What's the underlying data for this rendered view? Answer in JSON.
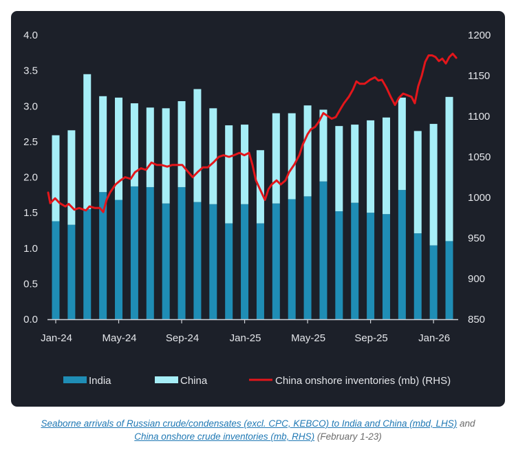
{
  "colors": {
    "card_background": "#1c2029",
    "india": "#1f8db5",
    "china": "#a6eef7",
    "inventories": "#e3161b",
    "axis": "#d0d4da"
  },
  "chart_data": {
    "type": "bar",
    "stacked": true,
    "bar_x_units": "month index, 0 = first labeled month (Jan-24), one bar per month",
    "x_ticks": [
      {
        "index": 0,
        "label": "Jan-24"
      },
      {
        "index": 4,
        "label": "May-24"
      },
      {
        "index": 8,
        "label": "Sep-24"
      },
      {
        "index": 12,
        "label": "Jan-25"
      },
      {
        "index": 16,
        "label": "May-25"
      },
      {
        "index": 20,
        "label": "Sep-25"
      },
      {
        "index": 24,
        "label": "Jan-26"
      }
    ],
    "y_left": {
      "ylim": [
        0,
        4
      ],
      "ticks": [
        "0.0",
        "0.5",
        "1.0",
        "1.5",
        "2.0",
        "2.5",
        "3.0",
        "3.5",
        "4.0"
      ]
    },
    "y_right": {
      "ylim": [
        850,
        1200
      ],
      "ticks": [
        "850",
        "900",
        "950",
        "1000",
        "1050",
        "1100",
        "1150",
        "1200"
      ]
    },
    "series": [
      {
        "name": "India",
        "axis": "left",
        "kind": "bar",
        "values": [
          1.38,
          1.33,
          1.55,
          1.79,
          1.68,
          1.87,
          1.86,
          1.63,
          1.86,
          1.65,
          1.62,
          1.35,
          1.62,
          1.35,
          1.63,
          1.69,
          1.73,
          1.94,
          1.52,
          1.64,
          1.5,
          1.48,
          1.82,
          1.21,
          1.04,
          1.1
        ]
      },
      {
        "name": "China",
        "axis": "left",
        "kind": "bar",
        "values": [
          1.21,
          1.33,
          1.9,
          1.35,
          1.44,
          1.17,
          1.12,
          1.34,
          1.21,
          1.59,
          1.35,
          1.38,
          1.12,
          1.03,
          1.27,
          1.21,
          1.28,
          1.01,
          1.2,
          1.1,
          1.3,
          1.36,
          1.3,
          1.44,
          1.71,
          2.03
        ]
      },
      {
        "name": "China onshore inventories (mb) (RHS)",
        "axis": "right",
        "kind": "line",
        "points": [
          [
            -0.48,
            1006
          ],
          [
            -0.35,
            993
          ],
          [
            -0.04,
            999
          ],
          [
            0.26,
            993
          ],
          [
            0.61,
            989
          ],
          [
            0.83,
            992
          ],
          [
            1.18,
            985
          ],
          [
            1.49,
            987
          ],
          [
            1.92,
            984
          ],
          [
            2.14,
            989
          ],
          [
            2.49,
            987
          ],
          [
            2.8,
            987
          ],
          [
            3.02,
            982
          ],
          [
            3.23,
            997
          ],
          [
            3.45,
            1006
          ],
          [
            3.8,
            1016
          ],
          [
            4.11,
            1021
          ],
          [
            4.41,
            1025
          ],
          [
            4.76,
            1023
          ],
          [
            5.03,
            1031
          ],
          [
            5.42,
            1036
          ],
          [
            5.73,
            1034
          ],
          [
            6.08,
            1043
          ],
          [
            6.42,
            1040
          ],
          [
            6.73,
            1040
          ],
          [
            7.08,
            1038
          ],
          [
            7.39,
            1040
          ],
          [
            7.74,
            1040
          ],
          [
            8.04,
            1040
          ],
          [
            8.35,
            1033
          ],
          [
            8.7,
            1025
          ],
          [
            9.0,
            1031
          ],
          [
            9.35,
            1037
          ],
          [
            9.66,
            1037
          ],
          [
            10.01,
            1043
          ],
          [
            10.36,
            1050
          ],
          [
            10.66,
            1052
          ],
          [
            11.01,
            1050
          ],
          [
            11.32,
            1052
          ],
          [
            11.67,
            1055
          ],
          [
            11.98,
            1052
          ],
          [
            12.28,
            1055
          ],
          [
            12.5,
            1040
          ],
          [
            12.72,
            1021
          ],
          [
            12.98,
            1010
          ],
          [
            13.29,
            997
          ],
          [
            13.51,
            1010
          ],
          [
            13.72,
            1016
          ],
          [
            14.03,
            1021
          ],
          [
            14.29,
            1016
          ],
          [
            14.6,
            1021
          ],
          [
            14.82,
            1031
          ],
          [
            15.17,
            1041
          ],
          [
            15.47,
            1052
          ],
          [
            15.69,
            1065
          ],
          [
            16.0,
            1078
          ],
          [
            16.21,
            1084
          ],
          [
            16.48,
            1087
          ],
          [
            16.7,
            1093
          ],
          [
            17.0,
            1104
          ],
          [
            17.22,
            1101
          ],
          [
            17.53,
            1097
          ],
          [
            17.79,
            1099
          ],
          [
            18.09,
            1109
          ],
          [
            18.31,
            1116
          ],
          [
            18.62,
            1124
          ],
          [
            18.88,
            1133
          ],
          [
            19.1,
            1143
          ],
          [
            19.32,
            1140
          ],
          [
            19.62,
            1140
          ],
          [
            19.97,
            1145
          ],
          [
            20.28,
            1148
          ],
          [
            20.5,
            1144
          ],
          [
            20.72,
            1145
          ],
          [
            21.02,
            1135
          ],
          [
            21.28,
            1124
          ],
          [
            21.55,
            1114
          ],
          [
            21.81,
            1123
          ],
          [
            22.07,
            1128
          ],
          [
            22.33,
            1126
          ],
          [
            22.6,
            1124
          ],
          [
            22.81,
            1116
          ],
          [
            23.03,
            1137
          ],
          [
            23.25,
            1150
          ],
          [
            23.47,
            1167
          ],
          [
            23.69,
            1175
          ],
          [
            23.91,
            1175
          ],
          [
            24.13,
            1173
          ],
          [
            24.34,
            1168
          ],
          [
            24.56,
            1171
          ],
          [
            24.78,
            1165
          ],
          [
            25.0,
            1173
          ],
          [
            25.22,
            1177
          ],
          [
            25.44,
            1172
          ]
        ]
      }
    ],
    "legend": [
      "India",
      "China",
      "China onshore inventories (mb) (RHS)"
    ],
    "legend_position": "bottom"
  },
  "caption": {
    "link_1": "Seaborne arrivals of Russian crude/condensates (excl. CPC, KEBCO) to India and China (mbd, LHS)",
    "text_1": "and",
    "link_2": "China onshore crude inventories (mb, RHS)",
    "text_2": "(February 1-23)"
  }
}
